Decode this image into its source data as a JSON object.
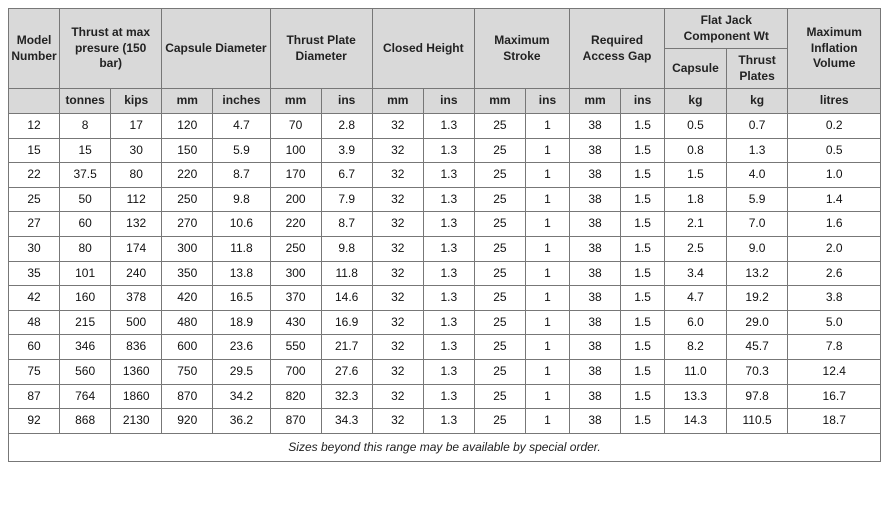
{
  "table": {
    "background_color": "#ffffff",
    "header_bg": "#d9d9d9",
    "border_color": "#777777",
    "font_family": "Verdana, Arial, sans-serif",
    "header_fontsize": 12,
    "body_fontsize": 12,
    "headers": {
      "model_number": "Model Number",
      "thrust": "Thrust at max presure (150 bar)",
      "capsule_diameter": "Capsule Diameter",
      "thrust_plate_diameter": "Thrust Plate Diameter",
      "closed_height": "Closed Height",
      "max_stroke": "Maximum Stroke",
      "required_access_gap": "Required Access Gap",
      "flat_jack_wt": "Flat Jack Component Wt",
      "flat_jack_capsule": "Capsule",
      "flat_jack_thrust_plates": "Thrust Plates",
      "max_inflation_volume": "Maximum Inflation Volume"
    },
    "units": {
      "model_number": "",
      "thrust_tonnes": "tonnes",
      "thrust_kips": "kips",
      "capsule_mm": "mm",
      "capsule_in": "inches",
      "tpd_mm": "mm",
      "tpd_in": "ins",
      "ch_mm": "mm",
      "ch_in": "ins",
      "ms_mm": "mm",
      "ms_in": "ins",
      "rag_mm": "mm",
      "rag_in": "ins",
      "fj_capsule_kg": "kg",
      "fj_tp_kg": "kg",
      "miv_litres": "litres"
    },
    "col_widths_pct": [
      5.8,
      5.8,
      5.8,
      5.8,
      6.5,
      5.8,
      5.8,
      5.8,
      5.8,
      5.8,
      5.0,
      5.8,
      5.0,
      7.0,
      7.0,
      10.5
    ],
    "rows": [
      [
        "12",
        "8",
        "17",
        "120",
        "4.7",
        "70",
        "2.8",
        "32",
        "1.3",
        "25",
        "1",
        "38",
        "1.5",
        "0.5",
        "0.7",
        "0.2"
      ],
      [
        "15",
        "15",
        "30",
        "150",
        "5.9",
        "100",
        "3.9",
        "32",
        "1.3",
        "25",
        "1",
        "38",
        "1.5",
        "0.8",
        "1.3",
        "0.5"
      ],
      [
        "22",
        "37.5",
        "80",
        "220",
        "8.7",
        "170",
        "6.7",
        "32",
        "1.3",
        "25",
        "1",
        "38",
        "1.5",
        "1.5",
        "4.0",
        "1.0"
      ],
      [
        "25",
        "50",
        "112",
        "250",
        "9.8",
        "200",
        "7.9",
        "32",
        "1.3",
        "25",
        "1",
        "38",
        "1.5",
        "1.8",
        "5.9",
        "1.4"
      ],
      [
        "27",
        "60",
        "132",
        "270",
        "10.6",
        "220",
        "8.7",
        "32",
        "1.3",
        "25",
        "1",
        "38",
        "1.5",
        "2.1",
        "7.0",
        "1.6"
      ],
      [
        "30",
        "80",
        "174",
        "300",
        "11.8",
        "250",
        "9.8",
        "32",
        "1.3",
        "25",
        "1",
        "38",
        "1.5",
        "2.5",
        "9.0",
        "2.0"
      ],
      [
        "35",
        "101",
        "240",
        "350",
        "13.8",
        "300",
        "11.8",
        "32",
        "1.3",
        "25",
        "1",
        "38",
        "1.5",
        "3.4",
        "13.2",
        "2.6"
      ],
      [
        "42",
        "160",
        "378",
        "420",
        "16.5",
        "370",
        "14.6",
        "32",
        "1.3",
        "25",
        "1",
        "38",
        "1.5",
        "4.7",
        "19.2",
        "3.8"
      ],
      [
        "48",
        "215",
        "500",
        "480",
        "18.9",
        "430",
        "16.9",
        "32",
        "1.3",
        "25",
        "1",
        "38",
        "1.5",
        "6.0",
        "29.0",
        "5.0"
      ],
      [
        "60",
        "346",
        "836",
        "600",
        "23.6",
        "550",
        "21.7",
        "32",
        "1.3",
        "25",
        "1",
        "38",
        "1.5",
        "8.2",
        "45.7",
        "7.8"
      ],
      [
        "75",
        "560",
        "1360",
        "750",
        "29.5",
        "700",
        "27.6",
        "32",
        "1.3",
        "25",
        "1",
        "38",
        "1.5",
        "11.0",
        "70.3",
        "12.4"
      ],
      [
        "87",
        "764",
        "1860",
        "870",
        "34.2",
        "820",
        "32.3",
        "32",
        "1.3",
        "25",
        "1",
        "38",
        "1.5",
        "13.3",
        "97.8",
        "16.7"
      ],
      [
        "92",
        "868",
        "2130",
        "920",
        "36.2",
        "870",
        "34.3",
        "32",
        "1.3",
        "25",
        "1",
        "38",
        "1.5",
        "14.3",
        "110.5",
        "18.7"
      ]
    ],
    "footer_note": "Sizes beyond this range may be available by special order."
  }
}
